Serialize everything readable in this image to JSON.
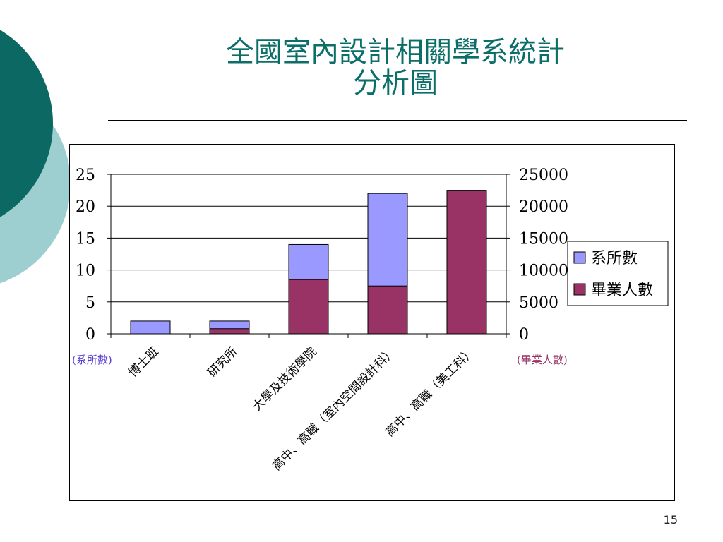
{
  "slide": {
    "title_line1": "全國室內設計相關學系統計",
    "title_line2": "分析圖",
    "page_number": "15",
    "colors": {
      "title": "#0b6e68",
      "circle_dark": "#0b6862",
      "circle_light": "#9ecfd0"
    }
  },
  "chart_data": {
    "type": "bar",
    "categories": [
      "博士班",
      "研究所",
      "大學及技術學院",
      "高中、高職（室內空間設計科）",
      "高中、高職（美工科）"
    ],
    "series": [
      {
        "name": "系所數",
        "axis": "left",
        "color": "#9999ff",
        "values": [
          2,
          2,
          14,
          22,
          0
        ]
      },
      {
        "name": "畢業人數",
        "axis": "right",
        "color": "#993366",
        "values": [
          0,
          800,
          8500,
          7500,
          22500
        ]
      }
    ],
    "left_axis": {
      "label": "(系所數)",
      "ylim": [
        0,
        25
      ],
      "ticks": [
        "0",
        "5",
        "10",
        "15",
        "20",
        "25"
      ]
    },
    "right_axis": {
      "label": "(畢業人數)",
      "ylim": [
        0,
        25000
      ],
      "ticks": [
        "0",
        "5000",
        "10000",
        "15000",
        "20000",
        "25000"
      ]
    },
    "legend_position": "right",
    "grid": true
  }
}
